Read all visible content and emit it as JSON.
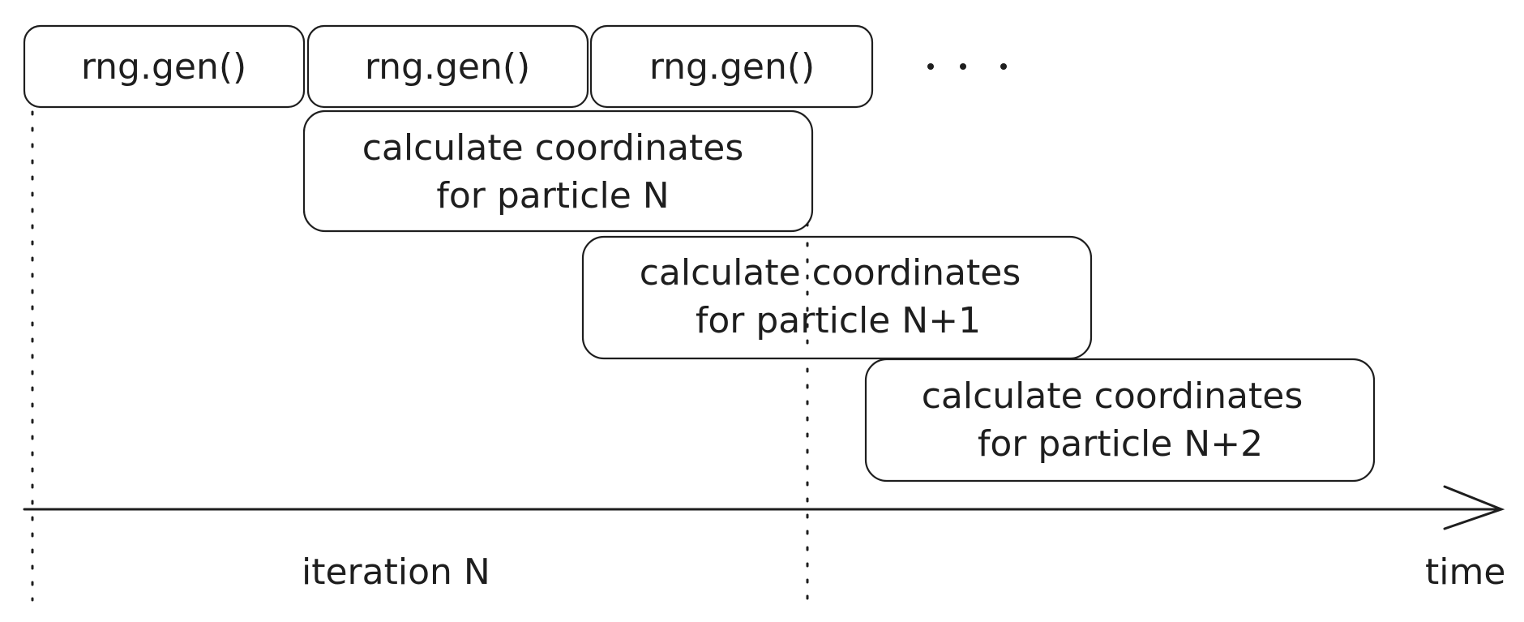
{
  "rng_calls": [
    {
      "label": "rng.gen()"
    },
    {
      "label": "rng.gen()"
    },
    {
      "label": "rng.gen()"
    }
  ],
  "continuation": "...",
  "calc_boxes": [
    {
      "line1": "calculate coordinates",
      "line2": "for particle N"
    },
    {
      "line1": "calculate coordinates",
      "line2": "for particle N+1"
    },
    {
      "line1": "calculate coordinates",
      "line2": "for particle N+2"
    }
  ],
  "axis": {
    "iteration_label": "iteration N",
    "time_label": "time"
  }
}
